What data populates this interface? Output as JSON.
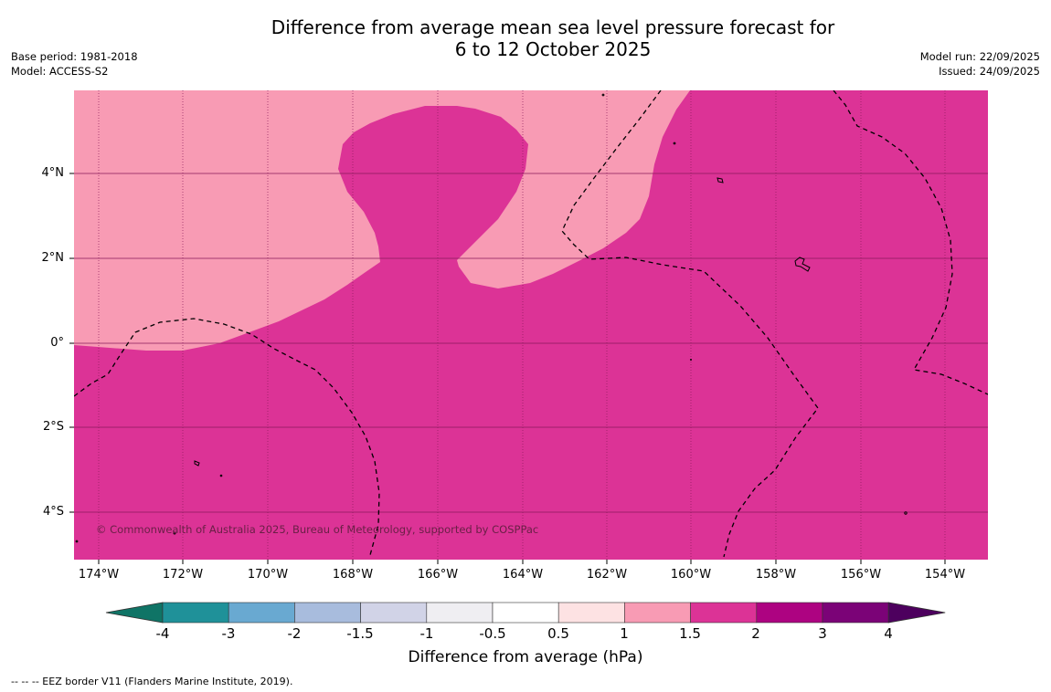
{
  "header": {
    "title_line1": "Difference from average mean sea level pressure forecast for",
    "title_line2": "6 to 12 October 2025",
    "base_period": "Base period: 1981-2018",
    "model": "Model: ACCESS-S2",
    "model_run": "Model run: 22/09/2025",
    "issued": "Issued: 24/09/2025"
  },
  "map": {
    "latitude_labels": [
      "4°N",
      "2°N",
      "0°",
      "2°S",
      "4°S"
    ],
    "longitude_labels": [
      "174°W",
      "172°W",
      "170°W",
      "168°W",
      "166°W",
      "164°W",
      "162°W",
      "160°W",
      "158°W",
      "156°W",
      "154°W"
    ],
    "copyright": "© Commonwealth of Australia 2025, Bureau of Meteorology, supported by COSPPac",
    "colors": {
      "band_1_to_1_5": "#f89bb4",
      "band_1_5_to_2": "#dc3396",
      "gridline": "#8a1a5a"
    }
  },
  "colorbar": {
    "title": "Difference from average (hPa)",
    "tick_labels": [
      "-4",
      "-3",
      "-2",
      "-1.5",
      "-1",
      "-0.5",
      "0.5",
      "1",
      "1.5",
      "2",
      "3",
      "4"
    ],
    "colors": [
      "#0f7466",
      "#1f9199",
      "#69a9d1",
      "#a8bcdd",
      "#d1d3e7",
      "#efeef2",
      "#ffffff",
      "#fde2e3",
      "#f89bb4",
      "#dc3396",
      "#ad0381",
      "#7b0377",
      "#4d005e"
    ]
  },
  "legend_note": "--  --  -- EEZ border V11 (Flanders Marine Institute, 2019)."
}
